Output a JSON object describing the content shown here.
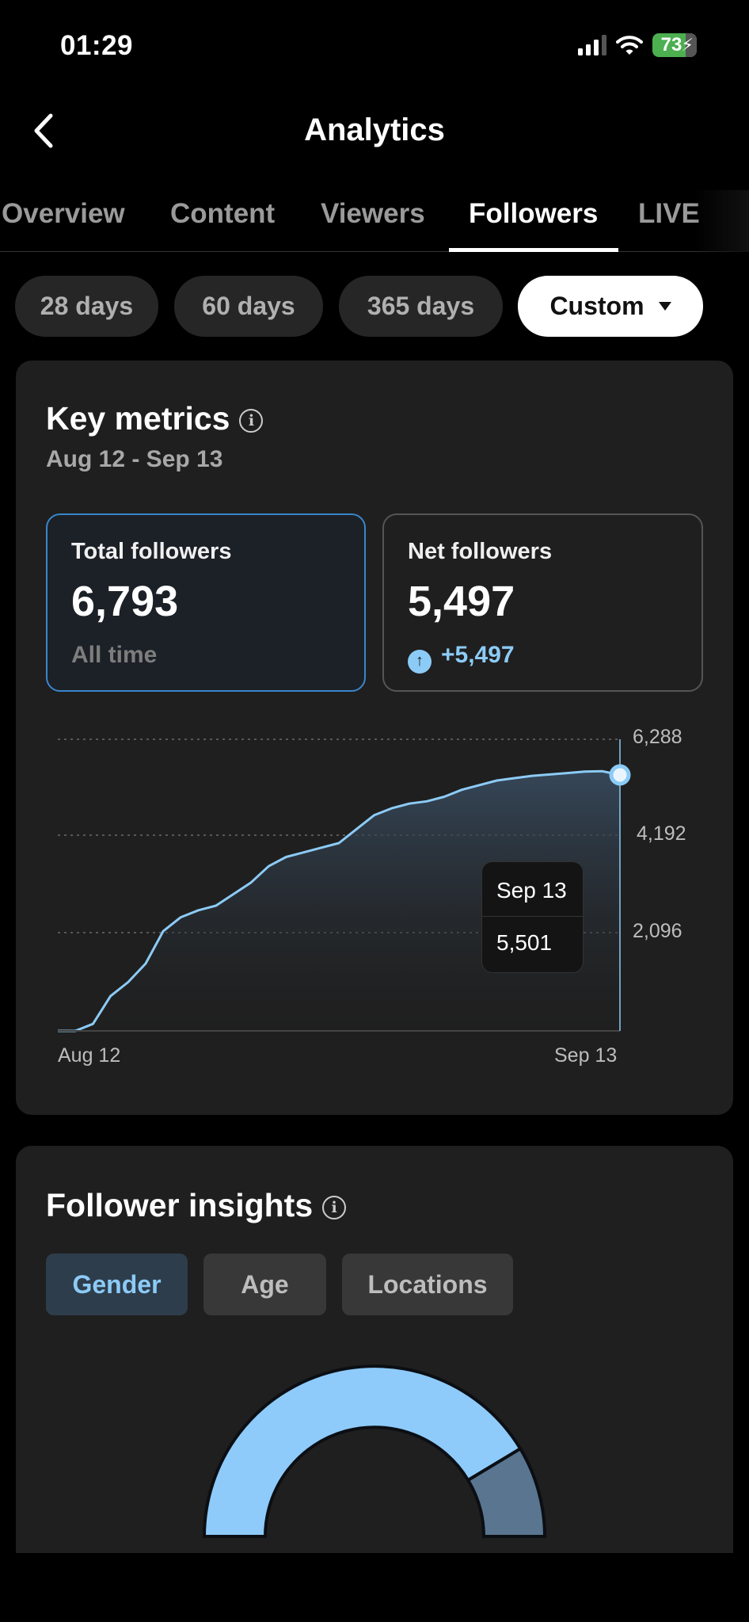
{
  "status_bar": {
    "time": "01:29",
    "battery": "73",
    "icons": [
      "cellular-signal-icon",
      "wifi-icon",
      "battery-charging-icon"
    ]
  },
  "header": {
    "title": "Analytics",
    "back_icon": "chevron-left-icon"
  },
  "tabs": [
    {
      "label": "Overview",
      "active": false
    },
    {
      "label": "Content",
      "active": false
    },
    {
      "label": "Viewers",
      "active": false
    },
    {
      "label": "Followers",
      "active": true
    },
    {
      "label": "LIVE",
      "active": false
    }
  ],
  "date_ranges": [
    {
      "label": "28 days",
      "active": false
    },
    {
      "label": "60 days",
      "active": false
    },
    {
      "label": "365 days",
      "active": false
    },
    {
      "label": "Custom",
      "active": true,
      "icon": "caret-down-icon"
    }
  ],
  "key_metrics": {
    "title": "Key metrics",
    "date_range": "Aug 12 - Sep 13",
    "cards": [
      {
        "label": "Total followers",
        "value": "6,793",
        "footer": "All time",
        "selected": true
      },
      {
        "label": "Net followers",
        "value": "5,497",
        "footer": "+5,497",
        "footer_icon": "arrow-up-circle-icon",
        "selected": false
      }
    ],
    "tooltip": {
      "date": "Sep 13",
      "value": "5,501"
    }
  },
  "chart_data": {
    "type": "area",
    "title": "Total followers",
    "x_labels": [
      "Aug 12",
      "Sep 13"
    ],
    "x": [
      "Aug 12",
      "Aug 13",
      "Aug 14",
      "Aug 15",
      "Aug 16",
      "Aug 17",
      "Aug 18",
      "Aug 19",
      "Aug 20",
      "Aug 21",
      "Aug 22",
      "Aug 23",
      "Aug 24",
      "Aug 25",
      "Aug 26",
      "Aug 27",
      "Aug 28",
      "Aug 29",
      "Aug 30",
      "Aug 31",
      "Sep 1",
      "Sep 2",
      "Sep 3",
      "Sep 4",
      "Sep 5",
      "Sep 6",
      "Sep 7",
      "Sep 8",
      "Sep 9",
      "Sep 10",
      "Sep 11",
      "Sep 12",
      "Sep 13"
    ],
    "values": [
      0,
      0,
      150,
      750,
      1050,
      1450,
      2150,
      2450,
      2600,
      2700,
      2950,
      3200,
      3550,
      3750,
      3850,
      3950,
      4050,
      4350,
      4650,
      4800,
      4900,
      4950,
      5050,
      5200,
      5300,
      5400,
      5450,
      5500,
      5530,
      5560,
      5590,
      5600,
      5501
    ],
    "y_ticks": [
      2096,
      4192,
      6288
    ],
    "ylim": [
      0,
      6288
    ],
    "grid": true,
    "highlight": {
      "x": "Sep 13",
      "y": 5501
    },
    "line_color": "#8ccbf6"
  },
  "follower_insights": {
    "title": "Follower insights",
    "tabs": [
      {
        "label": "Gender",
        "active": true
      },
      {
        "label": "Age",
        "active": false
      },
      {
        "label": "Locations",
        "active": false
      }
    ],
    "gender_chart": {
      "type": "half-donut",
      "segments": [
        {
          "share": 83,
          "color": "#8ecbfb"
        },
        {
          "share": 17,
          "color": "#5a7590"
        }
      ]
    }
  }
}
